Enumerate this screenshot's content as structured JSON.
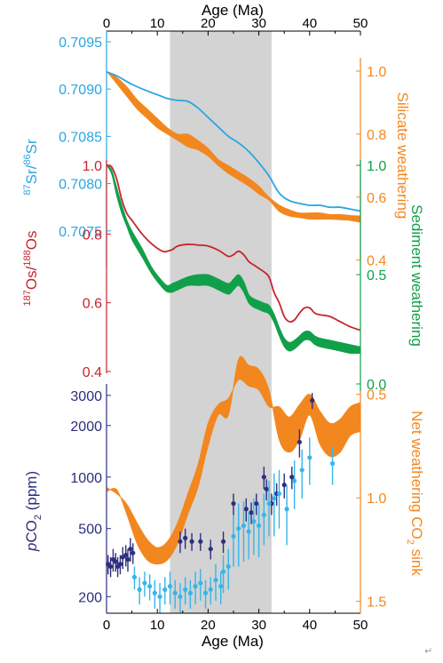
{
  "colors": {
    "sr": "#29a6e1",
    "os": "#c8242d",
    "sediment": "#11a04a",
    "silicate": "#f3871f",
    "net_sink": "#f3871f",
    "pco2_compilation": "#2e2e7e",
    "pco2_new": "#35b6ea",
    "highlight": "#d3d3d3",
    "axis": "#000000"
  },
  "chart_data": {
    "type": "line",
    "x_axis": {
      "label": "Age (Ma)",
      "range": [
        0,
        50
      ],
      "ticks": [
        "0",
        "10",
        "20",
        "30",
        "40",
        "50"
      ],
      "placement": "top and bottom"
    },
    "shaded_interval_ma": [
      12.5,
      32.5
    ],
    "left_axes": [
      {
        "id": "sr",
        "label_main": "Sr/",
        "label_sup1": "87",
        "label_sup2": "86",
        "label_end": "Sr",
        "range": [
          0.70715,
          0.7095
        ],
        "ticks": [
          "0.7095",
          "0.7090",
          "0.7085",
          "0.7080",
          "0.7075"
        ]
      },
      {
        "id": "os",
        "label_sup1": "187",
        "label_mid": "Os/",
        "label_sup2": "188",
        "label_end": "Os",
        "range": [
          0.4,
          1.0
        ],
        "ticks": [
          "1.0",
          "0.8",
          "0.6",
          "0.4"
        ]
      },
      {
        "id": "pco2",
        "label_italic": "p",
        "label_main": "CO",
        "label_sub": "2",
        "label_unit": " (ppm)",
        "scale": "log",
        "range": [
          160,
          3500
        ],
        "ticks": [
          "3000",
          "2000",
          "1000",
          "500",
          "200"
        ]
      }
    ],
    "right_axes": [
      {
        "id": "silicate",
        "label": "Silicate weathering",
        "range": [
          0.45,
          1.0
        ],
        "ticks": [
          "1.0",
          "0.8",
          "0.6",
          "0.4"
        ]
      },
      {
        "id": "sediment",
        "label": "Sediment weathering",
        "range": [
          0.0,
          1.0
        ],
        "ticks": [
          "1.0",
          "0.5",
          "0.0"
        ]
      },
      {
        "id": "net_sink",
        "label_main": "Net weathering CO",
        "label_sub": "2",
        "label_end": " sink",
        "inverted": true,
        "range": [
          0.45,
          1.6
        ],
        "ticks": [
          "0.5",
          "1.0",
          "1.5"
        ]
      }
    ],
    "series": [
      {
        "id": "sr",
        "axis": "sr",
        "style": "line",
        "x": [
          0,
          2,
          5,
          8,
          10,
          12,
          14,
          16,
          18,
          20,
          22,
          24,
          26,
          28,
          30,
          32,
          34,
          36,
          38,
          40,
          42,
          44,
          46,
          48,
          50
        ],
        "y": [
          0.70918,
          0.70914,
          0.70905,
          0.70898,
          0.70894,
          0.7089,
          0.70888,
          0.70887,
          0.7088,
          0.7087,
          0.7086,
          0.7085,
          0.70843,
          0.70834,
          0.70822,
          0.70808,
          0.7079,
          0.70782,
          0.70779,
          0.70777,
          0.70777,
          0.70775,
          0.70775,
          0.70773,
          0.70771
        ]
      },
      {
        "id": "os",
        "axis": "os",
        "style": "line",
        "x": [
          0,
          1,
          2,
          3,
          4,
          5,
          7,
          9,
          11,
          12,
          13,
          14,
          16,
          18,
          20,
          22,
          24,
          25,
          26,
          27,
          28,
          29,
          30,
          31,
          32,
          33,
          34,
          35,
          36,
          37,
          38,
          39,
          40,
          41,
          42,
          44,
          46,
          48,
          50
        ],
        "y": [
          1.0,
          0.995,
          0.96,
          0.9,
          0.86,
          0.84,
          0.8,
          0.77,
          0.75,
          0.75,
          0.755,
          0.765,
          0.77,
          0.768,
          0.765,
          0.753,
          0.735,
          0.74,
          0.75,
          0.74,
          0.72,
          0.71,
          0.7,
          0.69,
          0.675,
          0.63,
          0.6,
          0.56,
          0.545,
          0.55,
          0.57,
          0.585,
          0.585,
          0.57,
          0.565,
          0.56,
          0.545,
          0.53,
          0.52
        ]
      },
      {
        "id": "silicate",
        "axis": "silicate",
        "style": "band",
        "x": [
          0,
          2,
          4,
          6,
          8,
          10,
          12,
          14,
          16,
          18,
          20,
          22,
          24,
          26,
          28,
          30,
          32,
          34,
          36,
          38,
          40,
          42,
          44,
          46,
          48,
          50
        ],
        "y_low": [
          1.0,
          0.96,
          0.92,
          0.88,
          0.85,
          0.82,
          0.8,
          0.78,
          0.76,
          0.75,
          0.73,
          0.7,
          0.675,
          0.655,
          0.635,
          0.61,
          0.59,
          0.555,
          0.54,
          0.535,
          0.53,
          0.53,
          0.53,
          0.528,
          0.526,
          0.52
        ],
        "y_high": [
          1.0,
          0.98,
          0.95,
          0.91,
          0.88,
          0.85,
          0.82,
          0.8,
          0.8,
          0.78,
          0.755,
          0.72,
          0.7,
          0.68,
          0.66,
          0.635,
          0.6,
          0.575,
          0.56,
          0.55,
          0.55,
          0.55,
          0.545,
          0.545,
          0.542,
          0.54
        ]
      },
      {
        "id": "sediment",
        "axis": "sediment",
        "style": "band",
        "x": [
          0,
          1,
          2,
          3,
          4,
          5,
          7,
          9,
          11,
          12,
          13,
          14,
          16,
          18,
          20,
          22,
          24,
          25,
          26,
          27,
          28,
          29,
          30,
          31,
          32,
          33,
          34,
          35,
          36,
          37,
          38,
          39,
          40,
          41,
          42,
          44,
          46,
          48,
          50
        ],
        "y_low": [
          1.0,
          0.96,
          0.86,
          0.78,
          0.72,
          0.66,
          0.58,
          0.5,
          0.44,
          0.42,
          0.42,
          0.43,
          0.45,
          0.45,
          0.45,
          0.43,
          0.41,
          0.43,
          0.45,
          0.42,
          0.37,
          0.35,
          0.34,
          0.33,
          0.32,
          0.28,
          0.22,
          0.17,
          0.15,
          0.16,
          0.18,
          0.2,
          0.2,
          0.18,
          0.17,
          0.16,
          0.15,
          0.14,
          0.14
        ],
        "y_high": [
          1.0,
          0.98,
          0.9,
          0.82,
          0.75,
          0.7,
          0.62,
          0.53,
          0.47,
          0.45,
          0.46,
          0.47,
          0.49,
          0.5,
          0.5,
          0.48,
          0.46,
          0.48,
          0.5,
          0.47,
          0.41,
          0.39,
          0.38,
          0.37,
          0.36,
          0.32,
          0.26,
          0.21,
          0.19,
          0.2,
          0.22,
          0.24,
          0.24,
          0.22,
          0.21,
          0.2,
          0.19,
          0.18,
          0.17
        ]
      },
      {
        "id": "net_sink",
        "axis": "net_sink",
        "style": "band",
        "x": [
          0,
          2,
          4,
          6,
          8,
          10,
          12,
          14,
          16,
          18,
          20,
          22,
          24,
          26,
          28,
          30,
          32,
          34,
          36,
          38,
          40,
          42,
          44,
          46,
          48,
          50
        ],
        "y_low": [
          0.97,
          0.96,
          1.08,
          1.22,
          1.3,
          1.32,
          1.3,
          1.22,
          1.08,
          0.95,
          0.75,
          0.6,
          0.6,
          0.33,
          0.36,
          0.38,
          0.48,
          0.72,
          0.78,
          0.72,
          0.6,
          0.74,
          0.8,
          0.78,
          0.7,
          0.68
        ],
        "y_high": [
          0.95,
          0.98,
          1.03,
          1.12,
          1.2,
          1.24,
          1.21,
          1.12,
          0.98,
          0.84,
          0.64,
          0.55,
          0.52,
          0.43,
          0.46,
          0.48,
          0.56,
          0.56,
          0.61,
          0.55,
          0.5,
          0.58,
          0.64,
          0.62,
          0.56,
          0.54
        ]
      },
      {
        "id": "pco2_compilation",
        "axis": "pco2",
        "style": "points",
        "x": [
          0.3,
          0.8,
          1.3,
          1.8,
          2.2,
          2.7,
          3.2,
          3.8,
          4.2,
          4.7,
          5.2,
          14.5,
          15.5,
          16.8,
          18.5,
          20.5,
          23.0,
          25.0,
          27.5,
          28.5,
          29.5,
          31.0,
          31.5,
          32.5,
          33.5,
          35.0,
          36.5,
          38.0,
          40.5
        ],
        "y": [
          310,
          300,
          330,
          320,
          300,
          310,
          340,
          350,
          330,
          380,
          360,
          420,
          440,
          420,
          420,
          380,
          420,
          700,
          650,
          620,
          700,
          1000,
          850,
          700,
          800,
          900,
          1000,
          1600,
          2800
        ],
        "err": [
          40,
          40,
          50,
          40,
          40,
          40,
          50,
          50,
          50,
          60,
          50,
          60,
          60,
          50,
          50,
          50,
          60,
          100,
          100,
          90,
          100,
          150,
          120,
          100,
          120,
          150,
          150,
          300,
          300
        ]
      },
      {
        "id": "pco2_new",
        "axis": "pco2",
        "style": "points",
        "x": [
          5.5,
          6.5,
          7.5,
          8.5,
          9.5,
          10.5,
          11.5,
          12.5,
          13.5,
          14.5,
          15.5,
          16.5,
          17.5,
          18.5,
          19.5,
          20.5,
          21.5,
          22.5,
          23.0,
          24.0,
          25.0,
          26.0,
          27.0,
          28.0,
          29.0,
          30.0,
          31.0,
          32.0,
          33.0,
          34.0,
          35.5,
          37.0,
          38.5,
          40.0,
          44.5
        ],
        "y": [
          260,
          220,
          240,
          230,
          210,
          200,
          220,
          230,
          210,
          200,
          220,
          210,
          230,
          240,
          210,
          220,
          250,
          230,
          280,
          300,
          450,
          500,
          520,
          480,
          550,
          520,
          600,
          700,
          750,
          800,
          650,
          950,
          1100,
          1300,
          1200
        ],
        "err": [
          40,
          40,
          40,
          40,
          40,
          40,
          40,
          50,
          40,
          40,
          40,
          40,
          50,
          50,
          40,
          40,
          60,
          50,
          70,
          80,
          150,
          200,
          200,
          150,
          200,
          180,
          200,
          250,
          300,
          300,
          250,
          300,
          350,
          400,
          300
        ]
      }
    ]
  }
}
